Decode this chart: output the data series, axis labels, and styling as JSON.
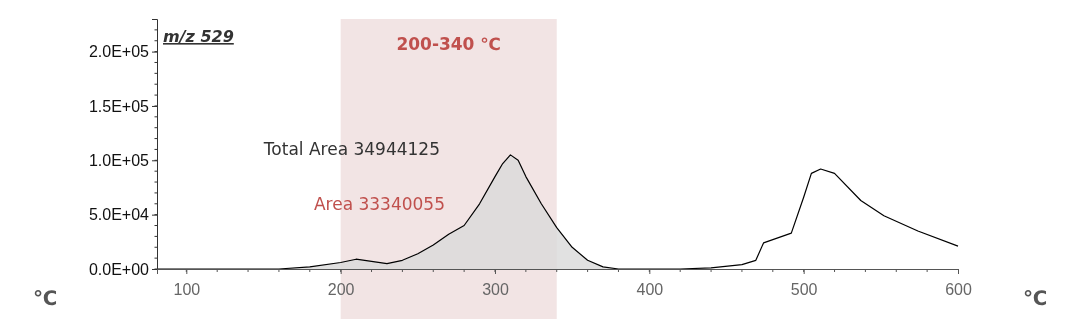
{
  "chart_data": {
    "type": "line",
    "title": "m/z  529",
    "xlabel": "℃",
    "xlim": [
      81,
      600
    ],
    "xticks": [
      100,
      200,
      300,
      400,
      500,
      600
    ],
    "ylim": [
      0,
      230000
    ],
    "yticks": [
      {
        "value": 0,
        "label": "0.0E+00"
      },
      {
        "value": 50000,
        "label": "5.0E+04"
      },
      {
        "value": 100000,
        "label": "1.0E+05"
      },
      {
        "value": 150000,
        "label": "1.5E+05"
      },
      {
        "value": 200000,
        "label": "2.0E+05"
      }
    ],
    "bands": [
      {
        "axis": "x",
        "from": 200,
        "to": 340,
        "label": "200-340 ℃",
        "color": "#f2e4e4"
      }
    ],
    "annotations": [
      "Total Area 34944125",
      "Area 33340055"
    ],
    "series": [
      {
        "type": "area",
        "color": "#d9d9d9",
        "x": [
          160,
          180,
          200,
          210,
          220,
          230,
          240,
          250,
          260,
          270,
          280,
          290,
          300,
          305,
          310,
          315,
          320,
          330,
          340,
          350,
          360,
          370,
          380
        ],
        "values": [
          0,
          2000,
          6000,
          9000,
          7000,
          5000,
          8000,
          14000,
          22000,
          32000,
          40000,
          60000,
          85000,
          97000,
          105000,
          100000,
          85000,
          60000,
          38000,
          20000,
          8000,
          2000,
          0
        ]
      },
      {
        "color": "#000000",
        "x": [
          81,
          160,
          180,
          200,
          210,
          220,
          230,
          240,
          250,
          260,
          270,
          280,
          290,
          300,
          305,
          310,
          315,
          320,
          330,
          340,
          350,
          360,
          370,
          380,
          400,
          420,
          440,
          460,
          469,
          474,
          492,
          500,
          505,
          511,
          520,
          537,
          552,
          574,
          600
        ],
        "values": [
          0,
          0,
          2000,
          6000,
          9000,
          7000,
          5000,
          8000,
          14000,
          22000,
          32000,
          40000,
          60000,
          85000,
          97000,
          105000,
          100000,
          85000,
          60000,
          38000,
          20000,
          8000,
          2000,
          0,
          0,
          0,
          1000,
          4000,
          8000,
          24000,
          33000,
          66000,
          88000,
          92000,
          88000,
          63000,
          49000,
          35000,
          21000
        ]
      }
    ]
  }
}
